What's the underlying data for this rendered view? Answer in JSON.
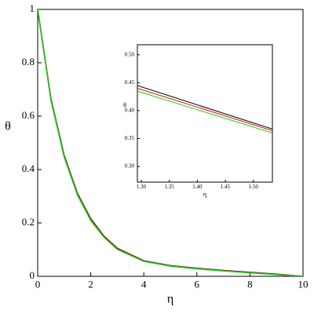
{
  "chart_data": [
    {
      "type": "line",
      "xlabel": "η",
      "ylabel": "θ",
      "x": [
        0,
        0.5,
        1,
        1.5,
        2,
        2.5,
        3,
        4,
        5,
        6,
        7,
        8,
        9,
        10
      ],
      "series": [
        {
          "color": "#000000",
          "values": [
            1,
            0.665,
            0.452,
            0.31,
            0.215,
            0.15,
            0.105,
            0.058,
            0.04,
            0.03,
            0.022,
            0.015,
            0.008,
            0
          ]
        },
        {
          "color": "#e01010",
          "values": [
            1,
            0.662,
            0.449,
            0.307,
            0.212,
            0.148,
            0.103,
            0.057,
            0.039,
            0.029,
            0.021,
            0.014,
            0.007,
            0
          ]
        },
        {
          "color": "#22cc22",
          "values": [
            1,
            0.659,
            0.446,
            0.304,
            0.209,
            0.146,
            0.101,
            0.056,
            0.038,
            0.028,
            0.02,
            0.013,
            0.006,
            0
          ]
        }
      ],
      "xlim": [
        0,
        10
      ],
      "ylim": [
        0,
        1
      ],
      "xticks": [
        0,
        2,
        4,
        6,
        8,
        10
      ],
      "yticks": [
        0,
        0.2,
        0.4,
        0.6,
        0.8,
        1
      ]
    },
    {
      "type": "line",
      "xlabel": "η",
      "ylabel": "θ",
      "x": [
        1.293,
        1.534
      ],
      "series": [
        {
          "color": "#000000",
          "values": [
            0.445,
            0.367
          ]
        },
        {
          "color": "#e01010",
          "values": [
            0.44,
            0.364
          ]
        },
        {
          "color": "#22cc22",
          "values": [
            0.435,
            0.36
          ]
        }
      ],
      "xlim": [
        1.293,
        1.534
      ],
      "ylim": [
        0.272,
        0.518
      ],
      "xticks": [
        {
          "value": 1.3,
          "label": "1.30"
        },
        {
          "value": 1.35,
          "label": "1.35"
        },
        {
          "value": 1.4,
          "label": "1.40"
        },
        {
          "value": 1.45,
          "label": "1.45"
        },
        {
          "value": 1.5,
          "label": "1.50"
        }
      ],
      "yticks": [
        {
          "value": 0.3,
          "label": "0.30"
        },
        {
          "value": 0.35,
          "label": "0.35"
        },
        {
          "value": 0.4,
          "label": "0.40"
        },
        {
          "value": 0.45,
          "label": "0.45"
        },
        {
          "value": 0.5,
          "label": "0.50"
        }
      ]
    }
  ]
}
